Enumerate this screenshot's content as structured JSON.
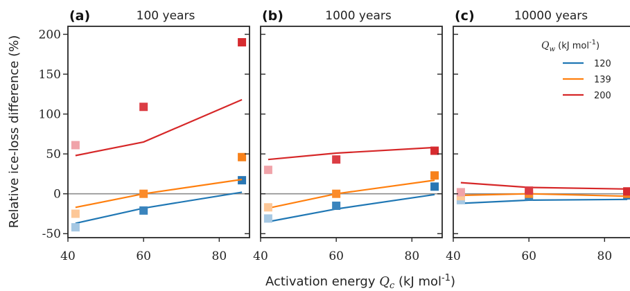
{
  "figure": {
    "ylabel": "Relative ice-loss difference (%)",
    "xlabel_text": "Activation energy ",
    "xlabel_math": "Q",
    "xlabel_sub": "c",
    "xlabel_unit": " (kJ mol",
    "xlabel_exp": "-1",
    "xlabel_close": ")",
    "legend_title_math": "Q",
    "legend_title_sub": "w",
    "legend_title_unit": " (kJ mol",
    "legend_title_exp": "-1",
    "legend_title_close": ")"
  },
  "chart_data": [
    {
      "type": "line",
      "panel_letter": "(a)",
      "title": "100 years",
      "xlim": [
        40,
        88
      ],
      "ylim": [
        -55,
        210
      ],
      "xticks": [
        40,
        60,
        80
      ],
      "yticks": [
        -50,
        0,
        50,
        100,
        150,
        200
      ],
      "zero_line": true,
      "series": [
        {
          "name": "120",
          "color": "#1f77b4",
          "line_x": [
            42,
            60,
            86
          ],
          "line_y": [
            -37,
            -18,
            2
          ],
          "points": [
            {
              "x": 42,
              "y": -42,
              "color": "#a6c8e3"
            },
            {
              "x": 60,
              "y": -21,
              "color": "#3a84bd"
            },
            {
              "x": 86,
              "y": 17,
              "color": "#2a77b4"
            }
          ]
        },
        {
          "name": "139",
          "color": "#ff7f0e",
          "line_x": [
            42,
            60,
            86
          ],
          "line_y": [
            -17,
            0,
            18
          ],
          "points": [
            {
              "x": 42,
              "y": -25,
              "color": "#fdc797"
            },
            {
              "x": 60,
              "y": 0,
              "color": "#fb8b2a"
            },
            {
              "x": 86,
              "y": 46,
              "color": "#f7811b"
            }
          ]
        },
        {
          "name": "200",
          "color": "#d62728",
          "line_x": [
            42,
            60,
            86
          ],
          "line_y": [
            48,
            65,
            118
          ],
          "points": [
            {
              "x": 42,
              "y": 61,
              "color": "#f0a3a9"
            },
            {
              "x": 60,
              "y": 109,
              "color": "#db3d44"
            },
            {
              "x": 86,
              "y": 190,
              "color": "#d62b2f"
            }
          ]
        }
      ]
    },
    {
      "type": "line",
      "panel_letter": "(b)",
      "title": "1000 years",
      "xlim": [
        40,
        88
      ],
      "ylim": [
        -55,
        210
      ],
      "xticks": [
        40,
        60,
        80
      ],
      "yticks": [],
      "zero_line": true,
      "series": [
        {
          "name": "120",
          "color": "#1f77b4",
          "line_x": [
            42,
            60,
            86
          ],
          "line_y": [
            -35,
            -19,
            -1
          ],
          "points": [
            {
              "x": 42,
              "y": -31,
              "color": "#a6c8e3"
            },
            {
              "x": 60,
              "y": -15,
              "color": "#3a84bd"
            },
            {
              "x": 86,
              "y": 9,
              "color": "#2a77b4"
            }
          ]
        },
        {
          "name": "139",
          "color": "#ff7f0e",
          "line_x": [
            42,
            60,
            86
          ],
          "line_y": [
            -18,
            0,
            17
          ],
          "points": [
            {
              "x": 42,
              "y": -17,
              "color": "#fdc797"
            },
            {
              "x": 60,
              "y": 0,
              "color": "#fb8b2a"
            },
            {
              "x": 86,
              "y": 23,
              "color": "#f7811b"
            }
          ]
        },
        {
          "name": "200",
          "color": "#d62728",
          "line_x": [
            42,
            60,
            86
          ],
          "line_y": [
            43,
            51,
            58
          ],
          "points": [
            {
              "x": 42,
              "y": 30,
              "color": "#f0a3a9"
            },
            {
              "x": 60,
              "y": 43,
              "color": "#db3d44"
            },
            {
              "x": 86,
              "y": 54,
              "color": "#d62b2f"
            }
          ]
        }
      ]
    },
    {
      "type": "line",
      "panel_letter": "(c)",
      "title": "10000 years",
      "xlim": [
        40,
        88
      ],
      "ylim": [
        -55,
        210
      ],
      "xticks": [
        40,
        60,
        80
      ],
      "yticks": [],
      "zero_line": true,
      "series": [
        {
          "name": "120",
          "color": "#1f77b4",
          "line_x": [
            42,
            60,
            86
          ],
          "line_y": [
            -12,
            -8,
            -7
          ],
          "points": [
            {
              "x": 42,
              "y": -8,
              "color": "#a6c8e3"
            },
            {
              "x": 60,
              "y": -3,
              "color": "#3a84bd"
            },
            {
              "x": 86,
              "y": -2,
              "color": "#2a77b4"
            }
          ]
        },
        {
          "name": "139",
          "color": "#ff7f0e",
          "line_x": [
            42,
            60,
            86
          ],
          "line_y": [
            -2,
            0,
            -3
          ],
          "points": [
            {
              "x": 42,
              "y": -3,
              "color": "#fdc797"
            },
            {
              "x": 60,
              "y": 0,
              "color": "#fb8b2a"
            },
            {
              "x": 86,
              "y": 0,
              "color": "#f7811b"
            }
          ]
        },
        {
          "name": "200",
          "color": "#d62728",
          "line_x": [
            42,
            60,
            86
          ],
          "line_y": [
            14,
            8,
            6
          ],
          "points": [
            {
              "x": 42,
              "y": 2,
              "color": "#f0a3a9"
            },
            {
              "x": 60,
              "y": 4,
              "color": "#db3d44"
            },
            {
              "x": 86,
              "y": 3,
              "color": "#d62b2f"
            }
          ]
        }
      ],
      "legend": {
        "placement": "top-right",
        "entries": [
          "120",
          "139",
          "200"
        ]
      }
    }
  ]
}
